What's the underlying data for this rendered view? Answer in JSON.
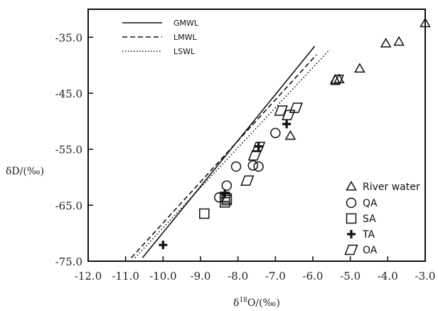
{
  "chart_data": {
    "type": "scatter",
    "xlabel_prefix": "δ",
    "xlabel_sup": "18",
    "xlabel_suffix": "O/(‰)",
    "ylabel": "δD/(‰)",
    "xlim": [
      -12.0,
      -3.0
    ],
    "ylim": [
      -75.0,
      -30.0
    ],
    "x_ticks": [
      -12.0,
      -11.0,
      -10.0,
      -9.0,
      -8.0,
      -7.0,
      -6.0,
      -5.0,
      -4.0,
      -3.0
    ],
    "x_tick_labels": [
      "-12.0",
      "-11.0",
      "-10.0",
      "-9.0",
      "-8.0",
      "-7.0",
      "-6.0",
      "-5.0",
      "-4.0",
      "-3.0"
    ],
    "y_ticks": [
      -75.0,
      -65.0,
      -55.0,
      -45.0,
      -35.0
    ],
    "y_tick_labels": [
      "-75.0",
      "-65.0",
      "-55.0",
      "-45.0",
      "-35.0"
    ],
    "grid": false,
    "lines": [
      {
        "name": "GMWL",
        "style": "solid",
        "x": [
          -10.55,
          -5.95
        ],
        "y": [
          -74.4,
          -36.6
        ]
      },
      {
        "name": "LMWL",
        "style": "dashed",
        "x": [
          -10.85,
          -5.9
        ],
        "y": [
          -74.4,
          -38.1
        ]
      },
      {
        "name": "LSWL",
        "style": "dotted",
        "x": [
          -10.75,
          -5.55
        ],
        "y": [
          -74.4,
          -37.2
        ]
      }
    ],
    "legend_position": "top-left and bottom-right",
    "series": [
      {
        "name": "River water",
        "marker": "triangle",
        "x": [
          -3.0,
          -3.7,
          -4.05,
          -4.75,
          -5.3,
          -5.4,
          -6.6
        ],
        "y": [
          -32.5,
          -35.8,
          -36.1,
          -40.6,
          -42.5,
          -42.6,
          -52.6
        ]
      },
      {
        "name": "QA",
        "marker": "circle",
        "x": [
          -7.0,
          -7.45,
          -7.6,
          -8.05,
          -8.3,
          -8.5
        ],
        "y": [
          -52.1,
          -58.1,
          -57.9,
          -58.1,
          -61.5,
          -63.6
        ]
      },
      {
        "name": "SA",
        "marker": "square",
        "x": [
          -8.9,
          -8.3,
          -8.35,
          -8.3,
          -8.35
        ],
        "y": [
          -66.5,
          -64.1,
          -64.5,
          -63.8,
          -63.5
        ]
      },
      {
        "name": "TA",
        "marker": "cross",
        "x": [
          -10.0,
          -8.35,
          -7.45,
          -6.7
        ],
        "y": [
          -72.1,
          -62.9,
          -54.5,
          -50.5
        ]
      },
      {
        "name": "OA",
        "marker": "parallelogram",
        "x": [
          -5.35,
          -6.45,
          -6.65,
          -6.85,
          -7.55,
          -7.45,
          -7.75
        ],
        "y": [
          -42.6,
          -47.6,
          -48.9,
          -48.1,
          -56.1,
          -54.6,
          -60.6
        ]
      }
    ]
  }
}
